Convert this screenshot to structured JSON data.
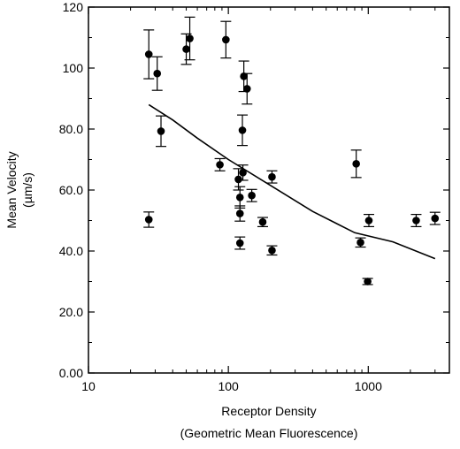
{
  "chart_data": {
    "type": "scatter",
    "title": "",
    "xlabel": "Receptor Density",
    "xlabel_sub": "(Geometric Mean Fluorescence)",
    "ylabel": "Mean Velocity",
    "ylabel_sub": "(µm/s)",
    "xscale": "log",
    "xlim": [
      10,
      3800
    ],
    "ylim": [
      0,
      120
    ],
    "grid": false,
    "x_ticks": [
      {
        "value": 10,
        "label": "10"
      },
      {
        "value": 100,
        "label": "100"
      },
      {
        "value": 1000,
        "label": "1000"
      }
    ],
    "y_ticks": [
      {
        "value": 0,
        "label": "0.00"
      },
      {
        "value": 20,
        "label": "20.0"
      },
      {
        "value": 40,
        "label": "40.0"
      },
      {
        "value": 60,
        "label": "60.0"
      },
      {
        "value": 80,
        "label": "80.0"
      },
      {
        "value": 100,
        "label": "100"
      },
      {
        "value": 120,
        "label": "120"
      }
    ],
    "series": [
      {
        "type": "scatter",
        "points": [
          {
            "x": 27,
            "y": 104.5,
            "err": 8
          },
          {
            "x": 27,
            "y": 50.3,
            "err": 2.5
          },
          {
            "x": 31,
            "y": 98.2,
            "err": 5.5
          },
          {
            "x": 33,
            "y": 79.3,
            "err": 5
          },
          {
            "x": 50,
            "y": 106.2,
            "err": 5
          },
          {
            "x": 53,
            "y": 109.7,
            "err": 7
          },
          {
            "x": 87,
            "y": 68.3,
            "err": 2
          },
          {
            "x": 96,
            "y": 109.3,
            "err": 6
          },
          {
            "x": 118,
            "y": 63.5,
            "err": 3.5
          },
          {
            "x": 121,
            "y": 57.6,
            "err": 3.5
          },
          {
            "x": 121,
            "y": 52.3,
            "err": 2.5
          },
          {
            "x": 121,
            "y": 42.6,
            "err": 2
          },
          {
            "x": 126,
            "y": 79.6,
            "err": 5
          },
          {
            "x": 127,
            "y": 65.7,
            "err": 2.5
          },
          {
            "x": 129,
            "y": 97.3,
            "err": 5
          },
          {
            "x": 136,
            "y": 93.2,
            "err": 5
          },
          {
            "x": 147,
            "y": 58.2,
            "err": 2
          },
          {
            "x": 176,
            "y": 49.5,
            "err": 1.5
          },
          {
            "x": 205,
            "y": 64.3,
            "err": 2
          },
          {
            "x": 205,
            "y": 40.2,
            "err": 1.5
          },
          {
            "x": 820,
            "y": 68.6,
            "err": 4.5
          },
          {
            "x": 880,
            "y": 42.8,
            "err": 1.5
          },
          {
            "x": 990,
            "y": 30.0,
            "err": 1
          },
          {
            "x": 1010,
            "y": 50.0,
            "err": 2
          },
          {
            "x": 2200,
            "y": 50.0,
            "err": 2
          },
          {
            "x": 3000,
            "y": 50.7,
            "err": 2
          }
        ]
      },
      {
        "type": "line",
        "points": [
          {
            "x": 27,
            "y": 88.0
          },
          {
            "x": 40,
            "y": 83.0
          },
          {
            "x": 60,
            "y": 77.0
          },
          {
            "x": 100,
            "y": 70.0
          },
          {
            "x": 200,
            "y": 61.5
          },
          {
            "x": 400,
            "y": 53.0
          },
          {
            "x": 800,
            "y": 46.0
          },
          {
            "x": 1500,
            "y": 43.0
          },
          {
            "x": 3000,
            "y": 37.5
          }
        ]
      }
    ]
  }
}
